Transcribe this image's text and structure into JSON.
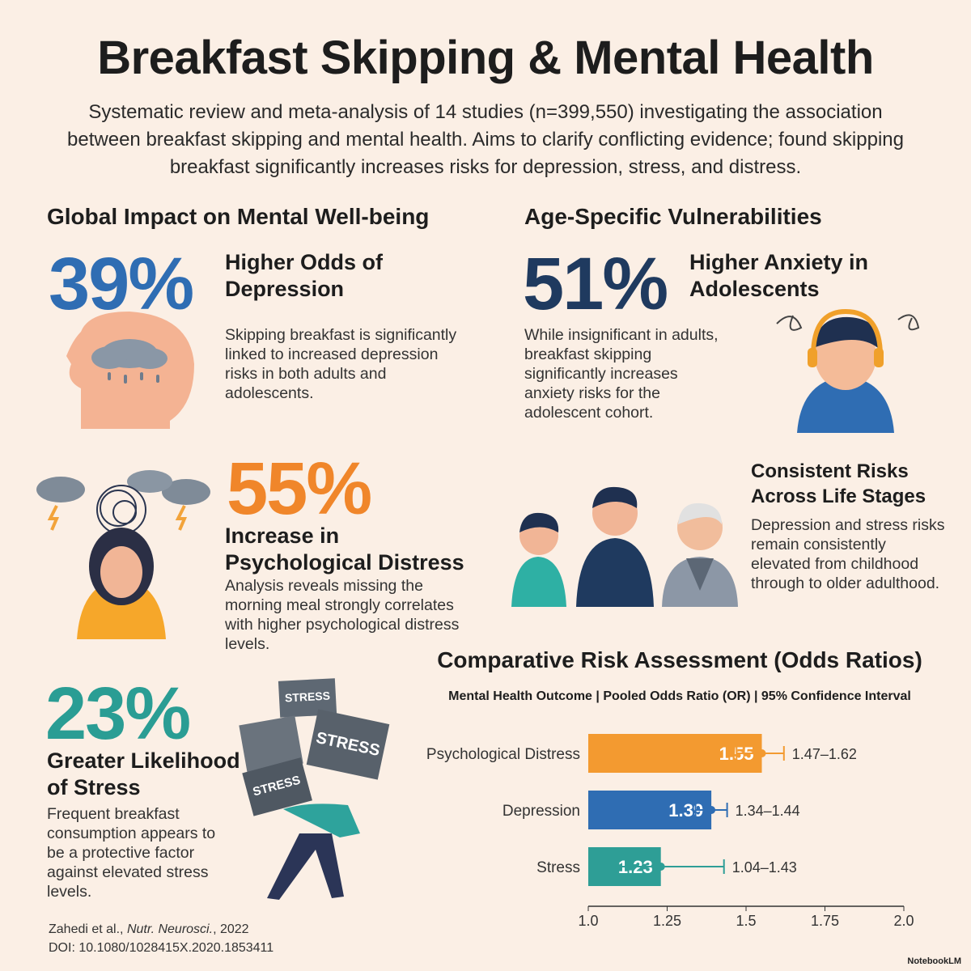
{
  "header": {
    "title": "Breakfast Skipping & Mental Health",
    "subtitle": "Systematic review and meta-analysis of 14 studies (n=399,550) investigating the association between breakfast skipping and mental health. Aims to clarify conflicting evidence; found skipping breakfast significantly increases risks for depression, stress, and distress."
  },
  "global_impact": {
    "heading": "Global Impact on Mental Well-being",
    "items": [
      {
        "stat": "39%",
        "label": "Higher Odds of Depression",
        "text": "Skipping breakfast is significantly linked to increased depression risks in both adults and adolescents."
      },
      {
        "stat": "55%",
        "label": "Increase in Psychological Distress",
        "text": "Analysis reveals missing the morning meal strongly correlates with higher psychological distress levels."
      },
      {
        "stat": "23%",
        "label": "Greater Likelihood of Stress",
        "text": "Frequent breakfast consumption appears to be a protective factor against elevated stress levels."
      }
    ]
  },
  "age_specific": {
    "heading": "Age-Specific Vulnerabilities",
    "items": [
      {
        "stat": "51%",
        "label": "Higher Anxiety in Adolescents",
        "text": "While insignificant in adults, breakfast skipping significantly increases anxiety risks for the adolescent cohort."
      },
      {
        "label": "Consistent Risks Across Life Stages",
        "text": "Depression and stress risks remain consistently elevated from childhood through to older adulthood."
      }
    ]
  },
  "illustration_words": {
    "stress": "STRESS"
  },
  "chart_data": {
    "type": "bar",
    "orientation": "horizontal",
    "title": "Comparative Risk Assessment (Odds Ratios)",
    "subtitle": "Mental Health Outcome | Pooled Odds Ratio (OR) | 95% Confidence Interval",
    "categories": [
      "Psychological Distress",
      "Depression",
      "Stress"
    ],
    "values": [
      1.55,
      1.39,
      1.23
    ],
    "colors": [
      "#f39a30",
      "#2f6db3",
      "#2e9e96"
    ],
    "ci_low": [
      1.47,
      1.34,
      1.04
    ],
    "ci_high": [
      1.62,
      1.44,
      1.43
    ],
    "ci_labels": [
      "1.47–1.62",
      "1.34–1.44",
      "1.04–1.43"
    ],
    "xlim": [
      1,
      2
    ],
    "xticks": [
      {
        "value": 1,
        "label": "1.0"
      },
      1.25,
      1.5,
      1.75,
      {
        "value": 2,
        "label": "2.0"
      }
    ]
  },
  "citation": {
    "authors": "Zahedi et al., ",
    "journal": "Nutr. Neurosci.",
    "year": ", 2022",
    "doi": "DOI: 10.1080/1028415X.2020.1853411"
  },
  "brand": "NotebookLM"
}
